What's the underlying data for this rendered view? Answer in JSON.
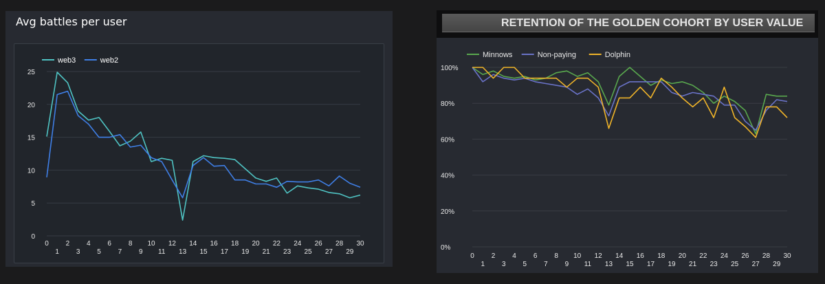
{
  "left": {
    "title": "Avg battles per user"
  },
  "right": {
    "title": "RETENTION OF THE GOLDEN COHORT BY USER VALUE"
  },
  "chart_data": [
    {
      "type": "line",
      "title": "Avg battles per user",
      "x": [
        0,
        1,
        2,
        3,
        4,
        5,
        6,
        7,
        8,
        9,
        10,
        11,
        12,
        13,
        14,
        15,
        16,
        17,
        18,
        19,
        20,
        21,
        22,
        23,
        24,
        25,
        26,
        27,
        28,
        29,
        30
      ],
      "ylim": [
        0,
        25
      ],
      "yticks": [
        0,
        5,
        10,
        15,
        20,
        25
      ],
      "grid": true,
      "legend": "top-left",
      "series": [
        {
          "name": "web3",
          "color": "#4fc3c3",
          "values": [
            15.1,
            24.9,
            23.3,
            19.0,
            17.6,
            18.0,
            15.9,
            13.7,
            14.4,
            15.8,
            11.3,
            11.8,
            11.5,
            2.4,
            11.3,
            12.2,
            11.9,
            11.8,
            11.6,
            10.2,
            8.8,
            8.3,
            8.8,
            6.5,
            7.6,
            7.3,
            7.1,
            6.6,
            6.4,
            5.8,
            6.2
          ]
        },
        {
          "name": "web2",
          "color": "#3f7fe6",
          "values": [
            8.9,
            21.5,
            22.0,
            18.3,
            17.0,
            15.0,
            15.0,
            15.4,
            13.5,
            13.8,
            11.9,
            11.3,
            8.5,
            5.8,
            10.7,
            11.9,
            10.6,
            10.7,
            8.5,
            8.5,
            7.9,
            7.9,
            7.4,
            8.3,
            8.2,
            8.2,
            8.5,
            7.6,
            9.1,
            8.0,
            7.4
          ]
        }
      ]
    },
    {
      "type": "line",
      "title": "RETENTION OF THE GOLDEN COHORT BY USER VALUE",
      "x": [
        0,
        1,
        2,
        3,
        4,
        5,
        6,
        7,
        8,
        9,
        10,
        11,
        12,
        13,
        14,
        15,
        16,
        17,
        18,
        19,
        20,
        21,
        22,
        23,
        24,
        25,
        26,
        27,
        28,
        29,
        30
      ],
      "ylim": [
        0,
        100
      ],
      "yticks": [
        "0%",
        "20%",
        "40%",
        "60%",
        "80%",
        "100%"
      ],
      "grid": true,
      "legend": "top-left",
      "series": [
        {
          "name": "Minnows",
          "color": "#59a84e",
          "values": [
            100,
            96,
            98,
            95,
            94,
            95,
            93,
            94,
            97,
            98,
            95,
            97,
            92,
            79,
            95,
            100,
            95,
            90,
            93,
            91,
            92,
            90,
            86,
            80,
            84,
            81,
            76,
            63,
            85,
            84,
            84
          ]
        },
        {
          "name": "Non-paying",
          "color": "#6a73c8",
          "values": [
            100,
            92,
            96,
            94,
            93,
            94,
            92,
            91,
            90,
            89,
            85,
            88,
            83,
            73,
            89,
            92,
            92,
            92,
            92,
            86,
            84,
            86,
            85,
            84,
            79,
            79,
            70,
            65,
            76,
            82,
            81
          ]
        },
        {
          "name": "Dolphin",
          "color": "#f0b429",
          "values": [
            100,
            100,
            94,
            100,
            100,
            94,
            94,
            94,
            94,
            89,
            94,
            94,
            89,
            66,
            83,
            83,
            89,
            83,
            94,
            89,
            83,
            78,
            83,
            72,
            89,
            72,
            67,
            61,
            78,
            78,
            72
          ]
        }
      ]
    }
  ]
}
